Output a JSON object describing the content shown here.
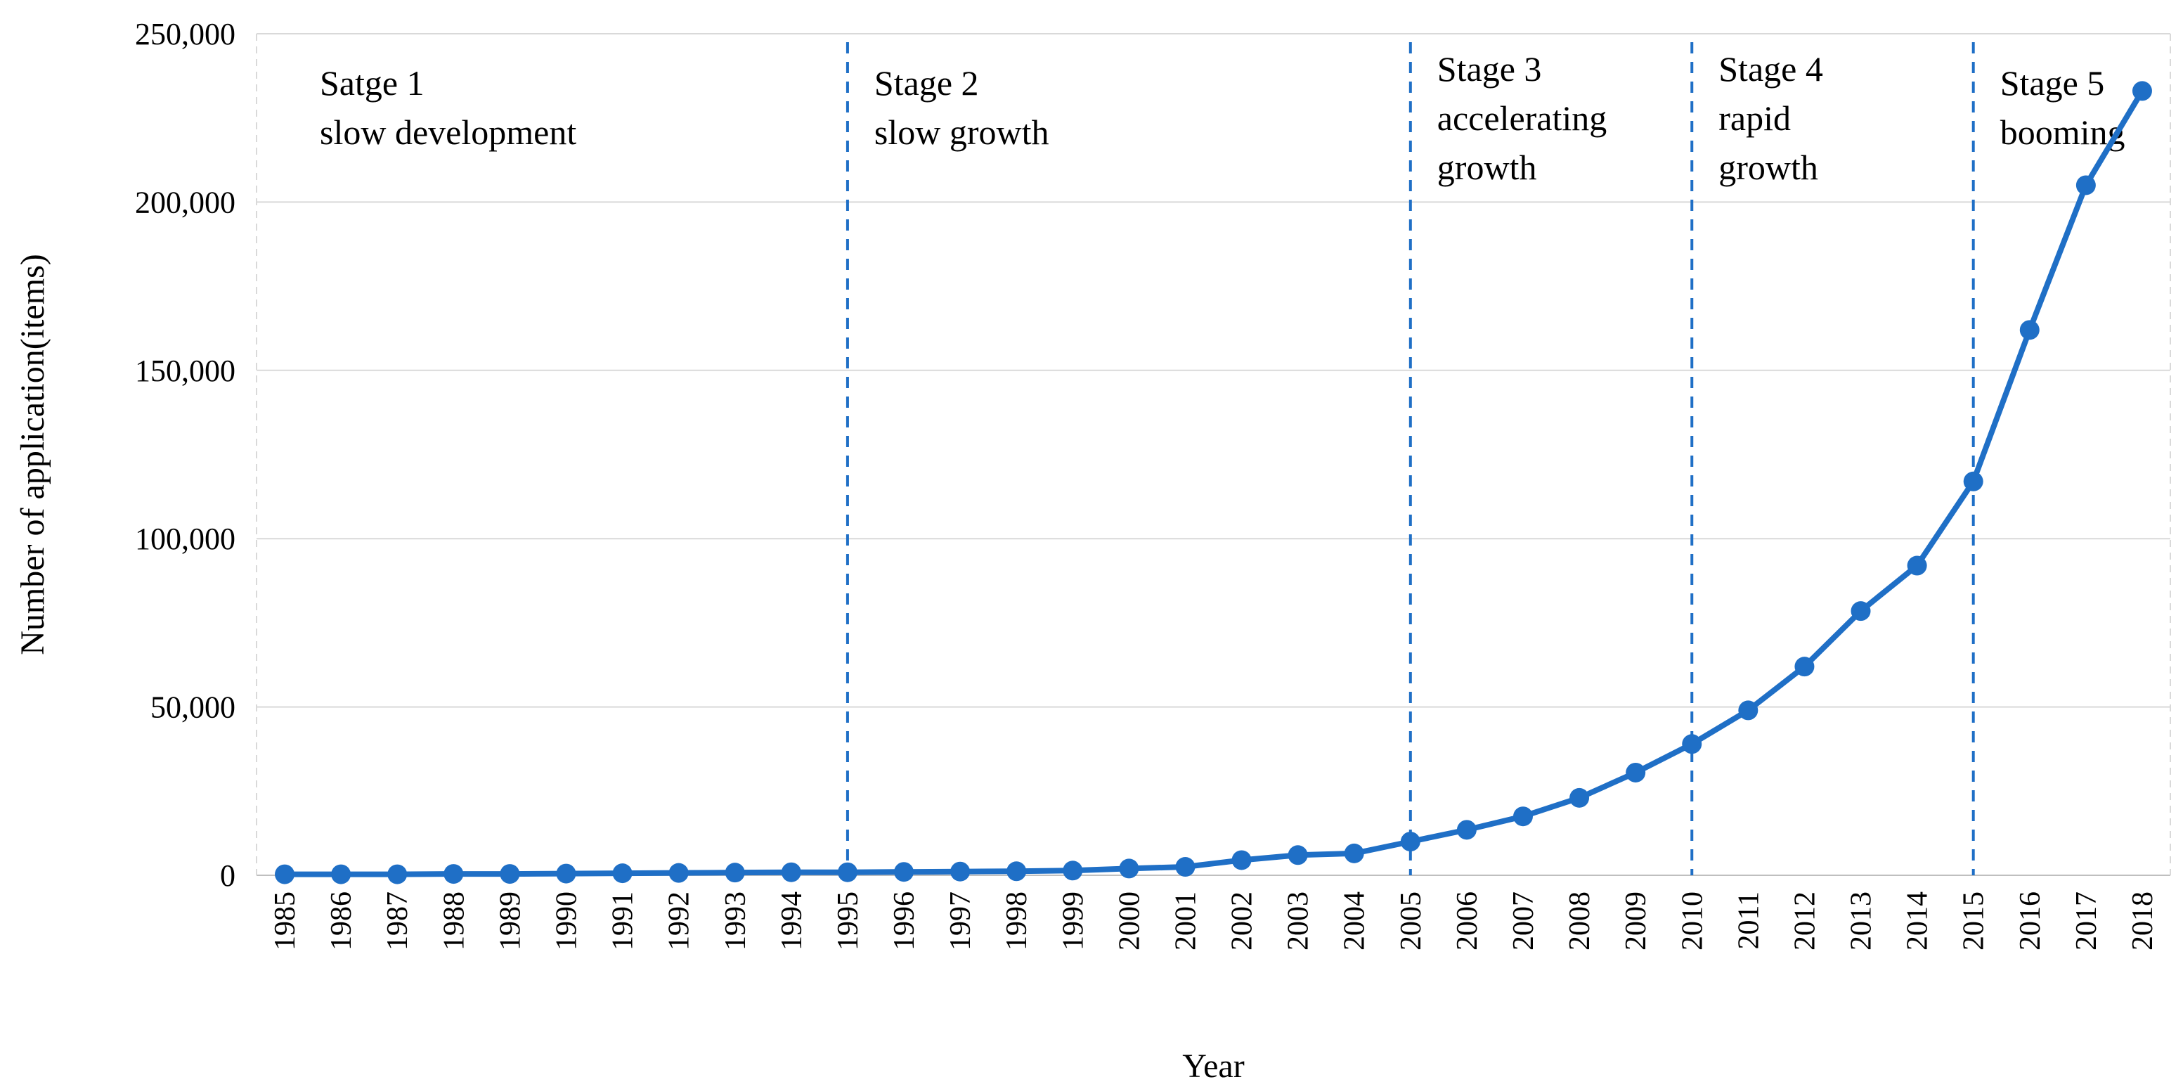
{
  "chart_data": {
    "type": "line",
    "title": "",
    "xlabel": "Year",
    "ylabel": "Number of application(items)",
    "ylim": [
      0,
      250000
    ],
    "yticks": [
      0,
      50000,
      100000,
      150000,
      200000,
      250000
    ],
    "ytick_labels": [
      "0",
      "50,000",
      "100,000",
      "150,000",
      "200,000",
      "250,000"
    ],
    "grid": "horizontal",
    "color": "#1F6FC6",
    "x": [
      "1985",
      "1986",
      "1987",
      "1988",
      "1989",
      "1990",
      "1991",
      "1992",
      "1993",
      "1994",
      "1995",
      "1996",
      "1997",
      "1998",
      "1999",
      "2000",
      "2001",
      "2002",
      "2003",
      "2004",
      "2005",
      "2006",
      "2007",
      "2008",
      "2009",
      "2010",
      "2011",
      "2012",
      "2013",
      "2014",
      "2015",
      "2016",
      "2017",
      "2018"
    ],
    "series": [
      {
        "name": "Number of application",
        "values": [
          300,
          300,
          300,
          400,
          400,
          500,
          600,
          700,
          800,
          900,
          900,
          1000,
          1100,
          1200,
          1400,
          2000,
          2500,
          4500,
          6000,
          6500,
          10000,
          13500,
          17500,
          23000,
          30500,
          39000,
          49000,
          62000,
          78500,
          92000,
          117000,
          162000,
          205000,
          233000
        ]
      }
    ],
    "stage_dividers": [
      "1995",
      "2005",
      "2010",
      "2015"
    ],
    "stages": [
      {
        "year": "1985",
        "lines": [
          "Satge 1",
          "slow development"
        ]
      },
      {
        "year": "1995",
        "lines": [
          "Stage 2",
          "slow growth"
        ]
      },
      {
        "year": "2005",
        "lines": [
          "Stage 3",
          "accelerating",
          "growth"
        ]
      },
      {
        "year": "2010",
        "lines": [
          "Stage 4",
          "rapid",
          "growth"
        ]
      },
      {
        "year": "2015",
        "lines": [
          "Stage 5",
          "booming"
        ]
      }
    ]
  }
}
